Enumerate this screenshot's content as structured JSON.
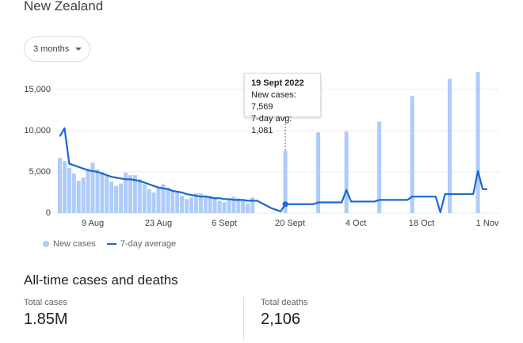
{
  "header": {
    "title": "New Zealand",
    "range": "3 months"
  },
  "chart_data": {
    "type": "bar",
    "categories": [
      null,
      null,
      null,
      null,
      null,
      null,
      null,
      "9 Aug",
      null,
      null,
      null,
      null,
      null,
      null,
      null,
      null,
      null,
      null,
      null,
      null,
      null,
      "23 Aug",
      null,
      null,
      null,
      null,
      null,
      null,
      null,
      null,
      null,
      null,
      null,
      null,
      null,
      "6 Sept",
      null,
      null,
      null,
      null,
      null,
      null,
      null,
      null,
      null,
      null,
      null,
      null,
      null,
      "20 Sept",
      null,
      null,
      null,
      null,
      null,
      null,
      null,
      null,
      null,
      null,
      null,
      null,
      null,
      "4 Oct",
      null,
      null,
      null,
      null,
      null,
      null,
      null,
      null,
      null,
      null,
      null,
      null,
      null,
      "18 Oct",
      null,
      null,
      null,
      null,
      null,
      null,
      null,
      null,
      null,
      null,
      null,
      null,
      null,
      "1 Nov"
    ],
    "series": [
      {
        "name": "New cases",
        "type": "bar",
        "color": "#aecbfa",
        "values": [
          6700,
          6300,
          5500,
          4800,
          3900,
          4300,
          5400,
          6100,
          5300,
          5000,
          4600,
          3800,
          3300,
          3600,
          4900,
          4600,
          4600,
          4100,
          3500,
          2900,
          2500,
          3100,
          3500,
          3100,
          2800,
          2600,
          2100,
          1700,
          1900,
          2400,
          2400,
          2200,
          2100,
          1900,
          1500,
          1300,
          1700,
          2000,
          1800,
          1600,
          1200,
          1900,
          null,
          null,
          null,
          null,
          null,
          null,
          7569,
          null,
          null,
          null,
          null,
          null,
          null,
          9800,
          null,
          null,
          null,
          null,
          null,
          9900,
          null,
          null,
          null,
          null,
          null,
          null,
          11100,
          null,
          null,
          null,
          null,
          null,
          null,
          14200,
          null,
          null,
          null,
          null,
          null,
          null,
          null,
          16300,
          null,
          null,
          null,
          null,
          null,
          17100,
          null,
          null
        ]
      },
      {
        "name": "7-day average",
        "type": "line",
        "color": "#1967d2",
        "values": [
          9300,
          10300,
          6000,
          5800,
          5600,
          5400,
          5200,
          5100,
          5000,
          4800,
          4600,
          4400,
          4300,
          4200,
          4100,
          4100,
          4000,
          3900,
          3700,
          3500,
          3300,
          3100,
          3000,
          2900,
          2700,
          2600,
          2500,
          2300,
          2200,
          2100,
          2000,
          2000,
          1900,
          1800,
          1800,
          1700,
          1700,
          1600,
          1600,
          1600,
          1500,
          1500,
          1500,
          1200,
          900,
          600,
          400,
          200,
          1081,
          1081,
          1081,
          1081,
          1081,
          1081,
          1081,
          1300,
          1300,
          1300,
          1300,
          1300,
          1300,
          2800,
          1400,
          1400,
          1400,
          1400,
          1400,
          1400,
          1600,
          1600,
          1600,
          1600,
          1600,
          1600,
          1600,
          2000,
          2000,
          2000,
          2000,
          2000,
          2000,
          100,
          2300,
          2300,
          2300,
          2300,
          2300,
          2300,
          2300,
          5100,
          2900,
          2900
        ]
      }
    ],
    "ylim": [
      0,
      17300
    ],
    "yticks": [
      0,
      {
        "value": 5000,
        "label": "5,000"
      },
      {
        "value": 10000,
        "label": "10,000"
      },
      {
        "value": 15000,
        "label": "15,000"
      }
    ],
    "grid": true,
    "tooltip": {
      "date": "19 Sept 2022",
      "lines": [
        "New cases: 7,569",
        "7-day avg: 1,081"
      ]
    }
  },
  "summary": {
    "title": "All-time cases and deaths",
    "stats": [
      {
        "label": "Total cases",
        "value": "1.85M"
      },
      {
        "label": "Total deaths",
        "value": "2,106"
      }
    ]
  }
}
